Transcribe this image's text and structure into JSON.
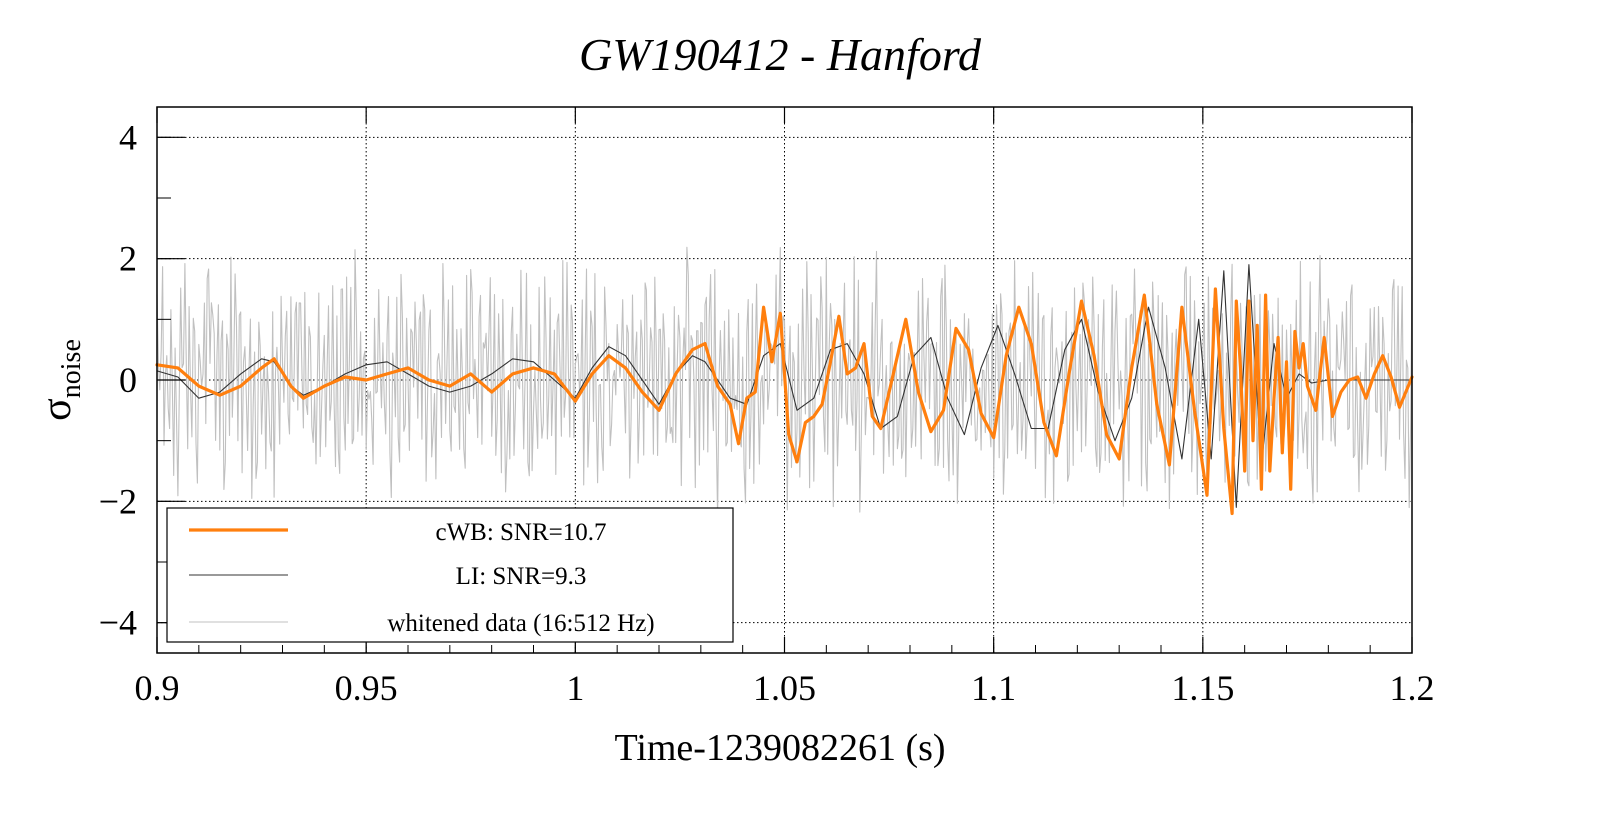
{
  "chart_data": {
    "type": "line",
    "title": "GW190412 - Hanford",
    "xlabel": "Time-1239082261 (s)",
    "ylabel": "σ",
    "ylabel_subscript": "noise",
    "xlim": [
      0.9,
      1.2
    ],
    "ylim": [
      -4.5,
      4.5
    ],
    "x_ticks": [
      0.9,
      0.95,
      1.0,
      1.05,
      1.1,
      1.15,
      1.2
    ],
    "x_tick_labels": [
      "0.9",
      "0.95",
      "1",
      "1.05",
      "1.1",
      "1.15",
      "1.2"
    ],
    "y_ticks": [
      -4,
      -2,
      0,
      2,
      4
    ],
    "y_tick_labels": [
      "−4",
      "−2",
      "0",
      "2",
      "4"
    ],
    "grid": true,
    "legend_position": "bottom-left",
    "series": [
      {
        "name": "cWB: SNR=10.7",
        "color": "#ff7f0e",
        "style": "thick",
        "x": [
          0.9,
          0.905,
          0.91,
          0.915,
          0.92,
          0.925,
          0.928,
          0.932,
          0.935,
          0.94,
          0.945,
          0.95,
          0.955,
          0.96,
          0.965,
          0.97,
          0.975,
          0.98,
          0.985,
          0.99,
          0.995,
          1.0,
          1.004,
          1.008,
          1.012,
          1.016,
          1.02,
          1.024,
          1.028,
          1.031,
          1.034,
          1.037,
          1.039,
          1.041,
          1.043,
          1.045,
          1.047,
          1.049,
          1.051,
          1.053,
          1.055,
          1.057,
          1.059,
          1.061,
          1.063,
          1.065,
          1.067,
          1.069,
          1.071,
          1.073,
          1.076,
          1.079,
          1.082,
          1.085,
          1.088,
          1.091,
          1.094,
          1.097,
          1.1,
          1.103,
          1.106,
          1.109,
          1.112,
          1.115,
          1.118,
          1.121,
          1.124,
          1.127,
          1.13,
          1.133,
          1.136,
          1.139,
          1.142,
          1.145,
          1.148,
          1.151,
          1.153,
          1.155,
          1.157,
          1.158,
          1.159,
          1.16,
          1.161,
          1.162,
          1.163,
          1.164,
          1.165,
          1.166,
          1.167,
          1.168,
          1.169,
          1.17,
          1.171,
          1.172,
          1.173,
          1.174,
          1.175,
          1.177,
          1.179,
          1.181,
          1.183,
          1.185,
          1.187,
          1.189,
          1.191,
          1.193,
          1.195,
          1.197,
          1.2
        ],
        "y": [
          0.25,
          0.2,
          -0.1,
          -0.25,
          -0.1,
          0.2,
          0.35,
          -0.1,
          -0.3,
          -0.1,
          0.05,
          0.0,
          0.1,
          0.2,
          0.0,
          -0.1,
          0.1,
          -0.2,
          0.1,
          0.2,
          0.1,
          -0.35,
          0.1,
          0.4,
          0.2,
          -0.2,
          -0.5,
          0.1,
          0.5,
          0.6,
          -0.1,
          -0.4,
          -1.05,
          -0.3,
          -0.2,
          1.2,
          0.3,
          1.1,
          -0.9,
          -1.35,
          -0.7,
          -0.6,
          -0.4,
          0.3,
          1.05,
          0.1,
          0.2,
          0.6,
          -0.6,
          -0.8,
          0.1,
          1.0,
          -0.2,
          -0.85,
          -0.5,
          0.85,
          0.5,
          -0.55,
          -0.95,
          0.4,
          1.2,
          0.6,
          -0.7,
          -1.25,
          0.1,
          1.3,
          0.4,
          -0.9,
          -1.3,
          0.2,
          1.4,
          -0.4,
          -1.4,
          1.2,
          -0.5,
          -1.9,
          1.5,
          -0.8,
          -2.2,
          1.3,
          0.2,
          -1.5,
          1.3,
          -1.0,
          0.9,
          -1.8,
          1.4,
          -1.5,
          -0.3,
          0.7,
          -1.2,
          0.3,
          -1.8,
          0.8,
          0.2,
          0.6,
          -0.1,
          -0.5,
          0.7,
          -0.6,
          -0.2,
          0.0,
          0.05,
          -0.3,
          0.1,
          0.4,
          0.05,
          -0.45,
          0.05
        ]
      },
      {
        "name": "LI: SNR=9.3",
        "color": "#333333",
        "style": "thin",
        "x": [
          0.9,
          0.905,
          0.91,
          0.915,
          0.92,
          0.925,
          0.928,
          0.932,
          0.935,
          0.94,
          0.945,
          0.95,
          0.955,
          0.96,
          0.965,
          0.97,
          0.975,
          0.98,
          0.985,
          0.99,
          0.995,
          1.0,
          1.004,
          1.008,
          1.012,
          1.016,
          1.02,
          1.024,
          1.028,
          1.031,
          1.034,
          1.037,
          1.041,
          1.045,
          1.049,
          1.053,
          1.057,
          1.061,
          1.065,
          1.069,
          1.073,
          1.077,
          1.081,
          1.085,
          1.089,
          1.093,
          1.097,
          1.101,
          1.105,
          1.109,
          1.113,
          1.117,
          1.121,
          1.125,
          1.129,
          1.133,
          1.137,
          1.141,
          1.145,
          1.149,
          1.152,
          1.155,
          1.158,
          1.161,
          1.164,
          1.167,
          1.17,
          1.173,
          1.176,
          1.18,
          1.185,
          1.19,
          1.195,
          1.2
        ],
        "y": [
          0.15,
          0.05,
          -0.3,
          -0.2,
          0.1,
          0.35,
          0.3,
          -0.1,
          -0.25,
          -0.1,
          0.1,
          0.25,
          0.3,
          0.1,
          -0.1,
          -0.2,
          -0.1,
          0.1,
          0.35,
          0.3,
          0.0,
          -0.3,
          0.2,
          0.55,
          0.4,
          0.0,
          -0.4,
          0.1,
          0.4,
          0.3,
          0.0,
          -0.3,
          -0.4,
          0.4,
          0.6,
          -0.5,
          -0.3,
          0.5,
          0.6,
          0.1,
          -0.8,
          -0.6,
          0.4,
          0.7,
          -0.3,
          -0.9,
          0.2,
          0.9,
          0.1,
          -0.8,
          -0.8,
          0.5,
          1.0,
          -0.2,
          -1.0,
          -0.3,
          1.2,
          0.2,
          -1.3,
          1.0,
          -1.3,
          1.8,
          -2.1,
          1.9,
          -1.4,
          0.6,
          -0.3,
          0.1,
          -0.05,
          0.0,
          0.0,
          0.0,
          0.0,
          0.0
        ]
      },
      {
        "name": "whitened data (16:512 Hz)",
        "color": "#c0c0c0",
        "style": "thin",
        "x": [],
        "y": []
      }
    ]
  }
}
